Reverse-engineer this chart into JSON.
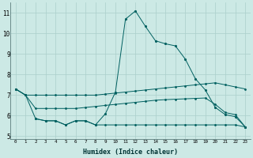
{
  "xlabel": "Humidex (Indice chaleur)",
  "background_color": "#cce9e5",
  "grid_color": "#aacfcb",
  "line_color": "#006060",
  "x_ticks": [
    0,
    1,
    2,
    3,
    4,
    5,
    6,
    7,
    8,
    9,
    10,
    11,
    12,
    13,
    14,
    15,
    16,
    17,
    18,
    19,
    20,
    21,
    22,
    23
  ],
  "xlim": [
    -0.5,
    23.5
  ],
  "ylim": [
    4.85,
    11.5
  ],
  "y_ticks": [
    5,
    6,
    7,
    8,
    9,
    10,
    11
  ],
  "line1_x": [
    0,
    1,
    2,
    3,
    4,
    5,
    6,
    7,
    8,
    9,
    10,
    11,
    12,
    13,
    14,
    15,
    16,
    17,
    18,
    19,
    20,
    21,
    22,
    23
  ],
  "line1_y": [
    7.3,
    7.0,
    7.0,
    7.0,
    7.0,
    7.0,
    7.0,
    7.0,
    7.0,
    7.05,
    7.1,
    7.15,
    7.2,
    7.25,
    7.3,
    7.35,
    7.4,
    7.45,
    7.5,
    7.55,
    7.6,
    7.5,
    7.4,
    7.3
  ],
  "line2_x": [
    0,
    1,
    2,
    3,
    4,
    5,
    6,
    7,
    8,
    9,
    10,
    11,
    12,
    13,
    14,
    15,
    16,
    17,
    18,
    19,
    20,
    21,
    22,
    23
  ],
  "line2_y": [
    7.3,
    7.0,
    6.35,
    6.35,
    6.35,
    6.35,
    6.35,
    6.4,
    6.45,
    6.5,
    6.55,
    6.6,
    6.65,
    6.7,
    6.75,
    6.78,
    6.8,
    6.82,
    6.84,
    6.86,
    6.55,
    6.15,
    6.05,
    5.45
  ],
  "line3_x": [
    2,
    3,
    4,
    5,
    6,
    7,
    8,
    9,
    10,
    11,
    12,
    13,
    14,
    15,
    16,
    17,
    18,
    19,
    20,
    21,
    22,
    23
  ],
  "line3_y": [
    5.85,
    5.75,
    5.75,
    5.55,
    5.75,
    5.75,
    5.55,
    5.55,
    5.55,
    5.55,
    5.55,
    5.55,
    5.55,
    5.55,
    5.55,
    5.55,
    5.55,
    5.55,
    5.55,
    5.55,
    5.55,
    5.45
  ],
  "line4_x": [
    0,
    1,
    2,
    3,
    4,
    5,
    6,
    7,
    8,
    9,
    10,
    11,
    12,
    13,
    14,
    15,
    16,
    17,
    18,
    19,
    20,
    21,
    22,
    23
  ],
  "line4_y": [
    7.3,
    7.0,
    5.85,
    5.75,
    5.75,
    5.55,
    5.75,
    5.75,
    5.55,
    6.1,
    7.15,
    10.7,
    11.1,
    10.35,
    9.65,
    9.5,
    9.4,
    8.75,
    7.8,
    7.25,
    6.4,
    6.05,
    5.95,
    5.45
  ]
}
